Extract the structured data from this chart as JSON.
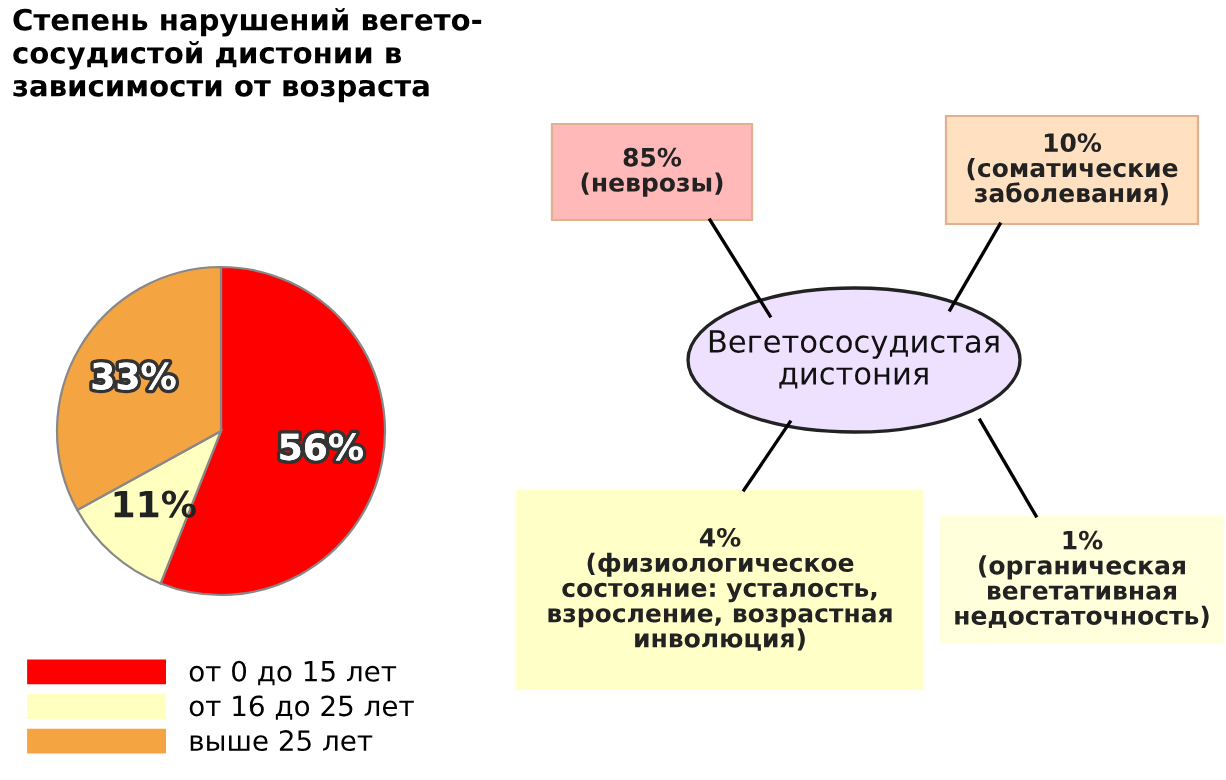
{
  "chart_data": [
    {
      "type": "pie",
      "title": "Степень нарушений вегето-\nсосудистой дистонии в\nзависимости от возраста",
      "categories": [
        "от 0 до 15 лет",
        "от 16 до 25 лет",
        "выше 25 лет"
      ],
      "values": [
        56,
        11,
        33
      ],
      "colors": [
        "#ff0000",
        "#ffffc0",
        "#f5a442"
      ],
      "value_labels": [
        "56%",
        "11%",
        "33%"
      ],
      "legend": "bottom"
    },
    {
      "type": "other",
      "annotations": [
        "Вегетососудистая\nдистония"
      ],
      "categories": [
        "(неврозы)",
        "(соматические\nзаболевания)",
        "(физиологическое\nсостояние: усталость,\nвзросление, возрастная\nинволюция)",
        "(органическая\nвегетативная\nнедостаточность)"
      ],
      "values": [
        85,
        10,
        4,
        1
      ],
      "value_labels": [
        "85%",
        "10%",
        "4%",
        "1%"
      ],
      "colors": [
        "#ffb9b9",
        "#ffe0c0",
        "#ffffc8",
        "#ffffdc"
      ]
    }
  ]
}
